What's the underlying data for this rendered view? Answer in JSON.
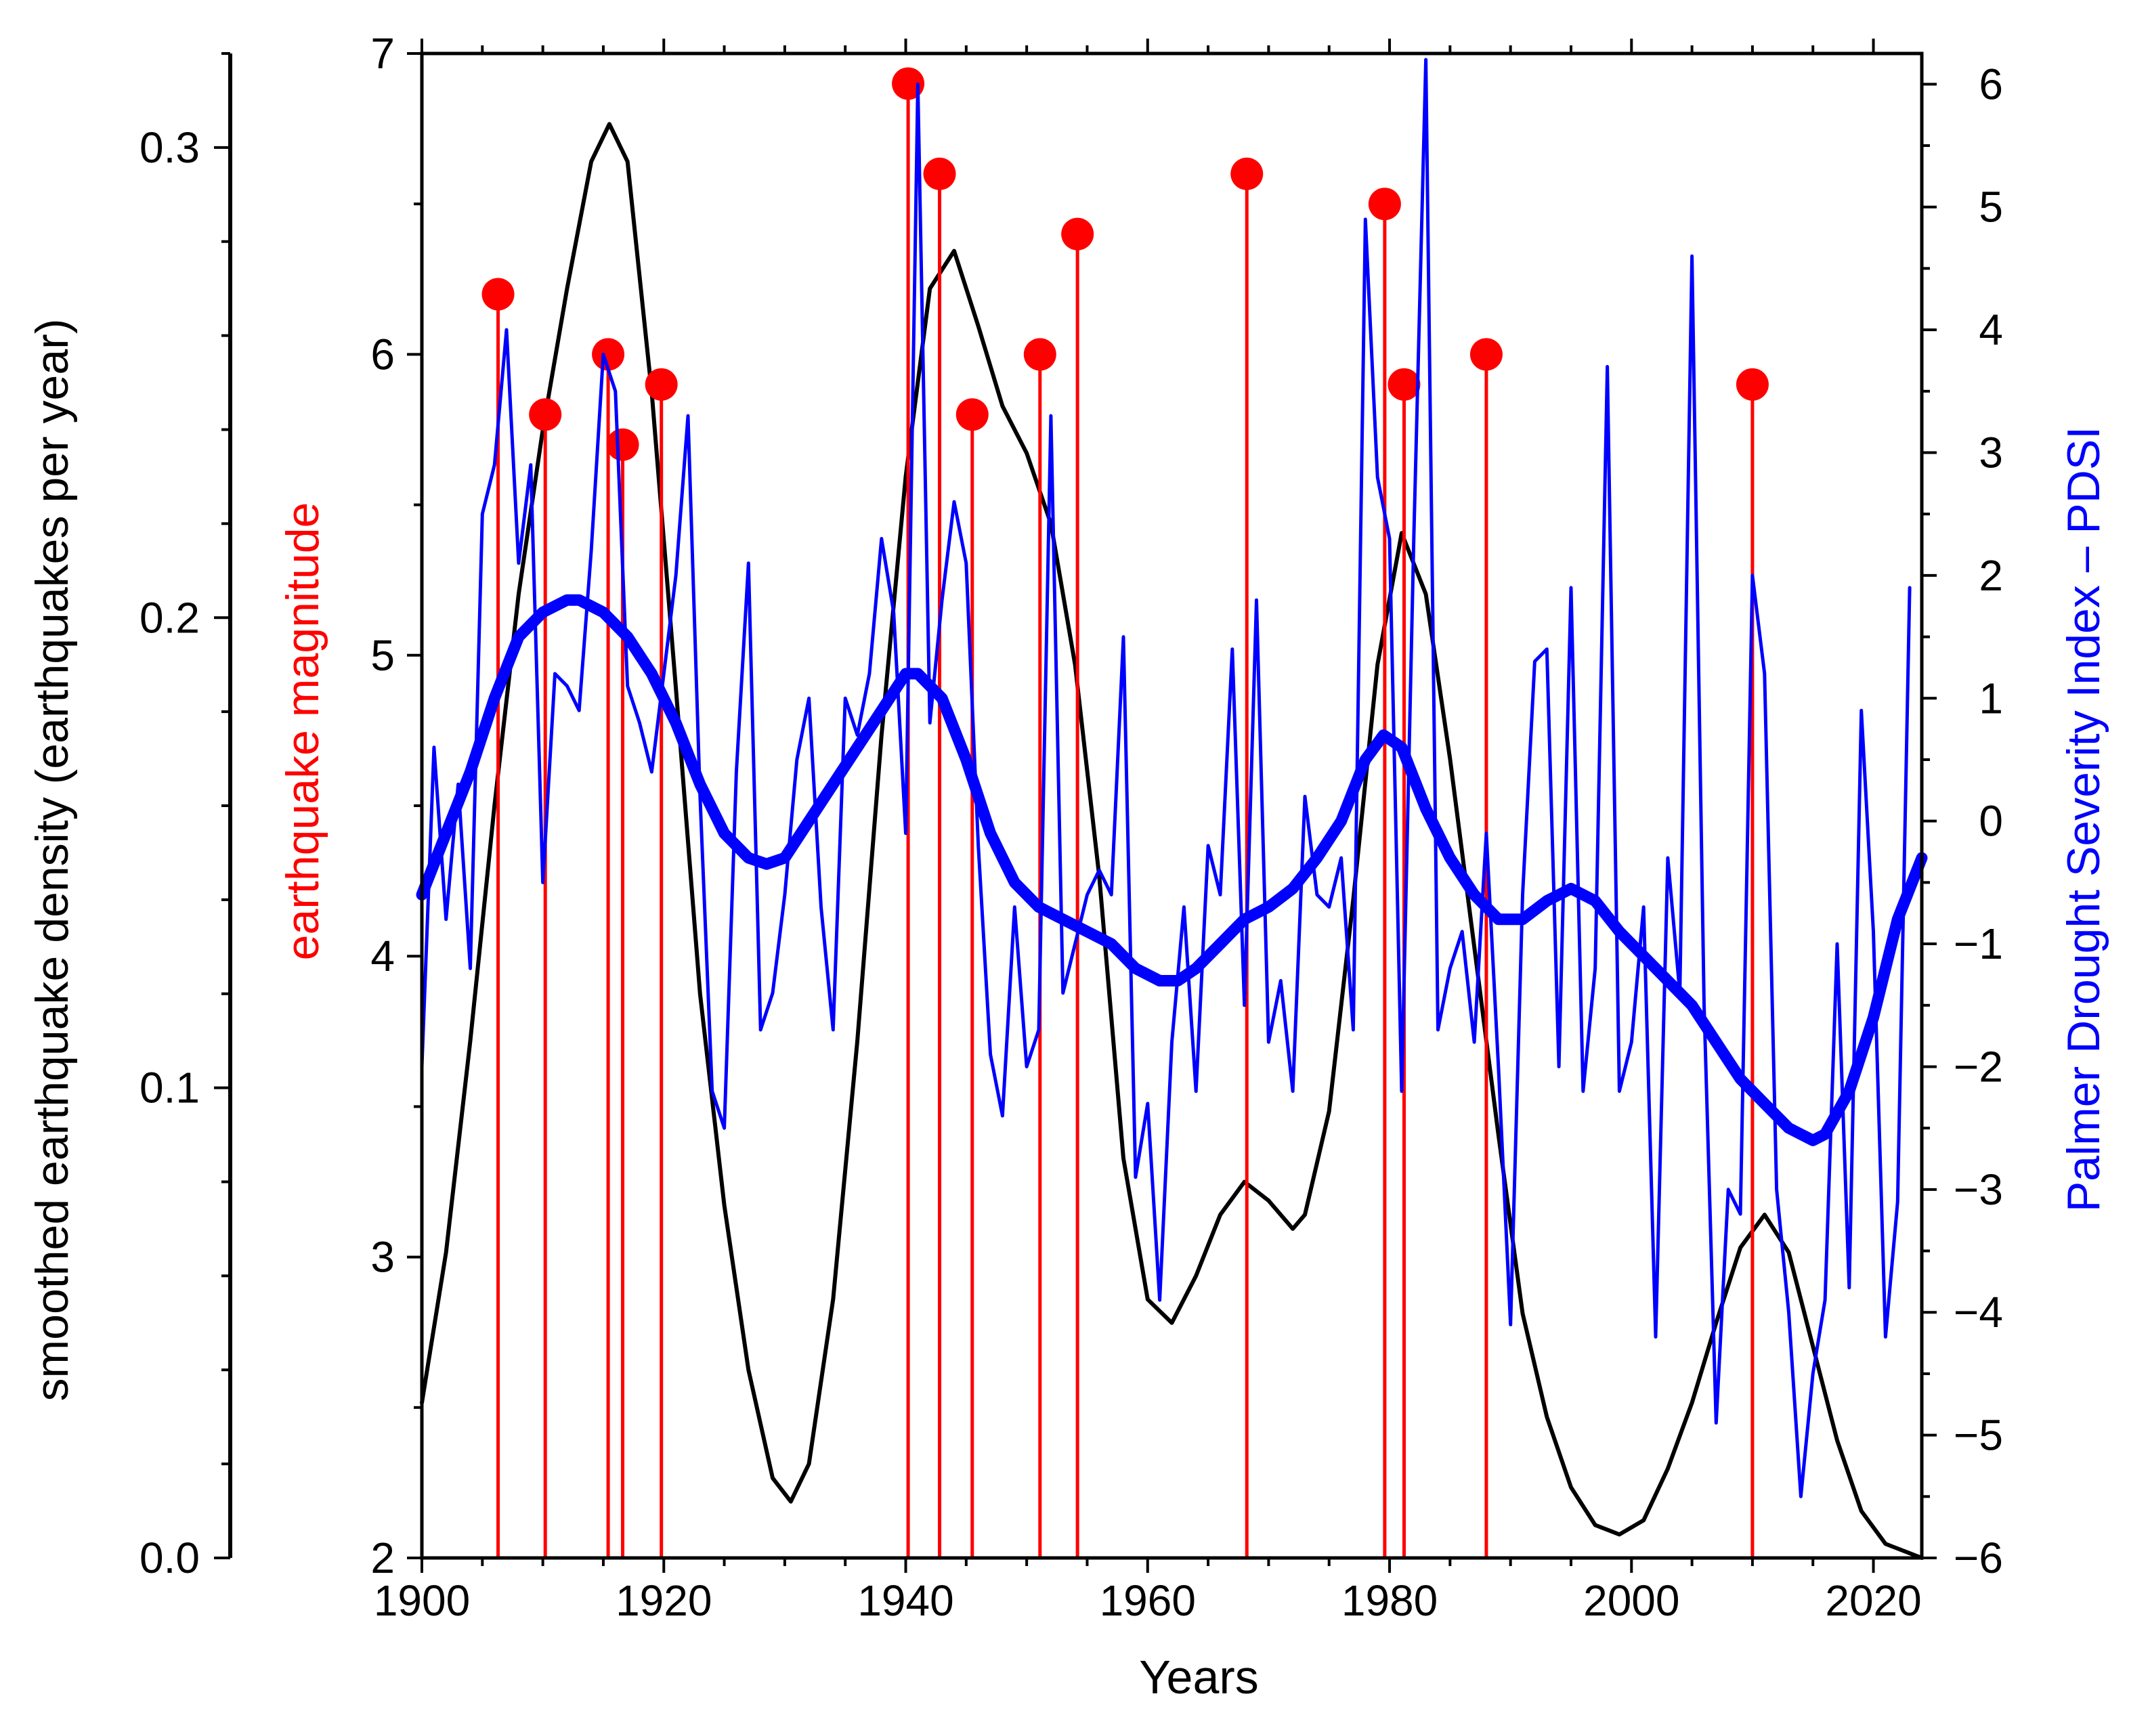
{
  "chart_data": {
    "type": "line",
    "title": "",
    "x_axis": {
      "label": "Years",
      "range": [
        1900,
        2024
      ],
      "ticks": [
        1900,
        1920,
        1940,
        1960,
        1980,
        2000,
        2020
      ],
      "minor_tick_step": 5
    },
    "y_axis_outer_left": {
      "label": "smoothed earthquake density (earthquakes per year)",
      "range": [
        0.0,
        0.32
      ],
      "ticks": [
        "0.0",
        "0.1",
        "0.2",
        "0.3"
      ],
      "minor_tick_step": 0.02
    },
    "y_axis_left": {
      "label": "earthquake magnitude",
      "label_color": "#ff0000",
      "range": [
        2,
        7
      ],
      "ticks": [
        2,
        3,
        4,
        5,
        6,
        7
      ],
      "minor_tick_step": 0.5
    },
    "y_axis_right": {
      "label": "Palmer Drought Severity Index – PDSI",
      "label_color": "#0000ff",
      "range": [
        -6,
        6.25
      ],
      "ticks": [
        "6",
        "5",
        "4",
        "3",
        "2",
        "1",
        "0",
        "−1",
        "−2",
        "−3",
        "−4",
        "−5",
        "−6"
      ],
      "tick_values": [
        6,
        5,
        4,
        3,
        2,
        1,
        0,
        -1,
        -2,
        -3,
        -4,
        -5,
        -6
      ],
      "minor_tick_step": 0.5
    },
    "series": [
      {
        "name": "earthquakes",
        "type": "stem",
        "axis": "magnitude",
        "color": "#ff0000",
        "x": [
          1906.3,
          1910.2,
          1915.4,
          1916.6,
          1919.8,
          1940.2,
          1942.8,
          1945.5,
          1951.1,
          1954.2,
          1968.2,
          1979.6,
          1981.2,
          1988.0,
          2010.0
        ],
        "values": [
          6.2,
          5.8,
          6.0,
          5.7,
          5.9,
          6.9,
          6.6,
          5.8,
          6.0,
          6.4,
          6.6,
          6.5,
          5.9,
          6.0,
          5.9
        ]
      },
      {
        "name": "smoothed earthquake density",
        "axis": "density",
        "color": "#000000",
        "x": [
          1900,
          1902,
          1904,
          1906,
          1908,
          1910,
          1912,
          1914,
          1915.5,
          1917,
          1919,
          1921,
          1923,
          1925,
          1927,
          1929,
          1930.5,
          1932,
          1934,
          1936,
          1938,
          1940,
          1942,
          1944,
          1946,
          1948,
          1950,
          1952,
          1954,
          1956,
          1958,
          1960,
          1962,
          1964,
          1966,
          1968,
          1970,
          1972,
          1973,
          1975,
          1977,
          1979,
          1981,
          1983,
          1985,
          1987,
          1989,
          1991,
          1993,
          1995,
          1997,
          1999,
          2001,
          2003,
          2005,
          2007,
          2009,
          2011,
          2013,
          2015,
          2017,
          2019,
          2021,
          2023,
          2024
        ],
        "values": [
          0.033,
          0.065,
          0.11,
          0.16,
          0.205,
          0.24,
          0.27,
          0.297,
          0.305,
          0.297,
          0.248,
          0.185,
          0.12,
          0.075,
          0.04,
          0.017,
          0.012,
          0.02,
          0.055,
          0.11,
          0.175,
          0.23,
          0.27,
          0.278,
          0.262,
          0.245,
          0.235,
          0.22,
          0.19,
          0.145,
          0.085,
          0.055,
          0.05,
          0.06,
          0.073,
          0.08,
          0.076,
          0.07,
          0.073,
          0.095,
          0.14,
          0.19,
          0.218,
          0.205,
          0.17,
          0.13,
          0.09,
          0.052,
          0.03,
          0.015,
          0.007,
          0.005,
          0.008,
          0.019,
          0.033,
          0.05,
          0.066,
          0.073,
          0.065,
          0.045,
          0.025,
          0.01,
          0.003,
          0.001,
          0.0
        ],
        "width": 6
      },
      {
        "name": "PDSI annual",
        "axis": "pdsi",
        "color": "#0000ff",
        "x": [
          1900,
          1901,
          1902,
          1903,
          1904,
          1905,
          1906,
          1907,
          1908,
          1909,
          1910,
          1911,
          1912,
          1913,
          1914,
          1915,
          1916,
          1917,
          1918,
          1919,
          1920,
          1921,
          1922,
          1923,
          1924,
          1925,
          1926,
          1927,
          1928,
          1929,
          1930,
          1931,
          1932,
          1933,
          1934,
          1935,
          1936,
          1937,
          1938,
          1939,
          1940,
          1941,
          1942,
          1943,
          1944,
          1945,
          1946,
          1947,
          1948,
          1949,
          1950,
          1951,
          1952,
          1953,
          1954,
          1955,
          1956,
          1957,
          1958,
          1959,
          1960,
          1961,
          1962,
          1963,
          1964,
          1965,
          1966,
          1967,
          1968,
          1969,
          1970,
          1971,
          1972,
          1973,
          1974,
          1975,
          1976,
          1977,
          1978,
          1979,
          1980,
          1981,
          1982,
          1983,
          1984,
          1985,
          1986,
          1987,
          1988,
          1989,
          1990,
          1991,
          1992,
          1993,
          1994,
          1995,
          1996,
          1997,
          1998,
          1999,
          2000,
          2001,
          2002,
          2003,
          2004,
          2005,
          2006,
          2007,
          2008,
          2009,
          2010,
          2011,
          2012,
          2013,
          2014,
          2015,
          2016,
          2017,
          2018,
          2019,
          2020,
          2021,
          2022,
          2023
        ],
        "values": [
          -2.0,
          0.6,
          -0.8,
          0.3,
          -1.2,
          2.5,
          2.9,
          4.0,
          2.1,
          2.9,
          -0.5,
          1.2,
          1.1,
          0.9,
          2.2,
          3.8,
          3.5,
          1.1,
          0.8,
          0.4,
          1.2,
          2.0,
          3.3,
          0.2,
          -2.2,
          -2.5,
          0.4,
          2.1,
          -1.7,
          -1.4,
          -0.6,
          0.5,
          1.0,
          -0.7,
          -1.7,
          1.0,
          0.7,
          1.2,
          2.3,
          1.7,
          -0.1,
          6.0,
          0.8,
          1.8,
          2.6,
          2.1,
          -0.2,
          -1.9,
          -2.4,
          -0.7,
          -2.0,
          -1.7,
          3.3,
          -1.4,
          -1.0,
          -0.6,
          -0.4,
          -0.6,
          1.5,
          -2.9,
          -2.3,
          -3.9,
          -1.8,
          -0.7,
          -2.2,
          -0.2,
          -0.6,
          1.4,
          -1.5,
          1.8,
          -1.8,
          -1.3,
          -2.2,
          0.2,
          -0.6,
          -0.7,
          -0.3,
          -1.7,
          4.9,
          2.8,
          2.3,
          -2.2,
          2.3,
          6.2,
          -1.7,
          -1.2,
          -0.9,
          -1.8,
          -0.1,
          -2.0,
          -4.1,
          -0.6,
          1.3,
          1.4,
          -2.0,
          1.9,
          -2.2,
          -1.2,
          3.7,
          -2.2,
          -1.8,
          -0.7,
          -4.2,
          -0.3,
          -1.4,
          4.6,
          -1.5,
          -4.9,
          -3.0,
          -3.2,
          2.0,
          1.2,
          -3.0,
          -4.0,
          -5.5,
          -4.5,
          -3.9,
          -1.0,
          -3.8,
          0.9,
          -0.9,
          -4.2,
          -3.1,
          1.9
        ],
        "width": 5
      },
      {
        "name": "PDSI smoothed",
        "axis": "pdsi",
        "color": "#0000ff",
        "x": [
          1900,
          1902,
          1904,
          1906,
          1908,
          1910,
          1912,
          1913,
          1915,
          1917,
          1919,
          1921,
          1923,
          1925,
          1927,
          1928.5,
          1930,
          1932,
          1934,
          1936,
          1938,
          1940,
          1941,
          1943,
          1945,
          1947,
          1949,
          1951,
          1953,
          1955,
          1957,
          1959,
          1961,
          1962.5,
          1964,
          1966,
          1968,
          1970,
          1972,
          1974,
          1976,
          1978,
          1979.5,
          1981,
          1983,
          1985,
          1987,
          1989,
          1991,
          1993,
          1995,
          1997,
          1999,
          2001,
          2003,
          2005,
          2007,
          2009,
          2011,
          2013,
          2015,
          2016,
          2018,
          2020,
          2022,
          2024
        ],
        "values": [
          -0.6,
          -0.1,
          0.4,
          1.0,
          1.5,
          1.7,
          1.8,
          1.8,
          1.7,
          1.5,
          1.2,
          0.8,
          0.3,
          -0.1,
          -0.3,
          -0.35,
          -0.3,
          0.0,
          0.3,
          0.6,
          0.9,
          1.2,
          1.2,
          1.0,
          0.5,
          -0.1,
          -0.5,
          -0.7,
          -0.8,
          -0.9,
          -1.0,
          -1.2,
          -1.3,
          -1.3,
          -1.2,
          -1.0,
          -0.8,
          -0.7,
          -0.55,
          -0.3,
          0.0,
          0.5,
          0.7,
          0.6,
          0.1,
          -0.3,
          -0.6,
          -0.8,
          -0.8,
          -0.65,
          -0.55,
          -0.65,
          -0.9,
          -1.1,
          -1.3,
          -1.5,
          -1.8,
          -2.1,
          -2.3,
          -2.5,
          -2.6,
          -2.55,
          -2.2,
          -1.6,
          -0.8,
          -0.3
        ],
        "width": 17
      }
    ]
  }
}
